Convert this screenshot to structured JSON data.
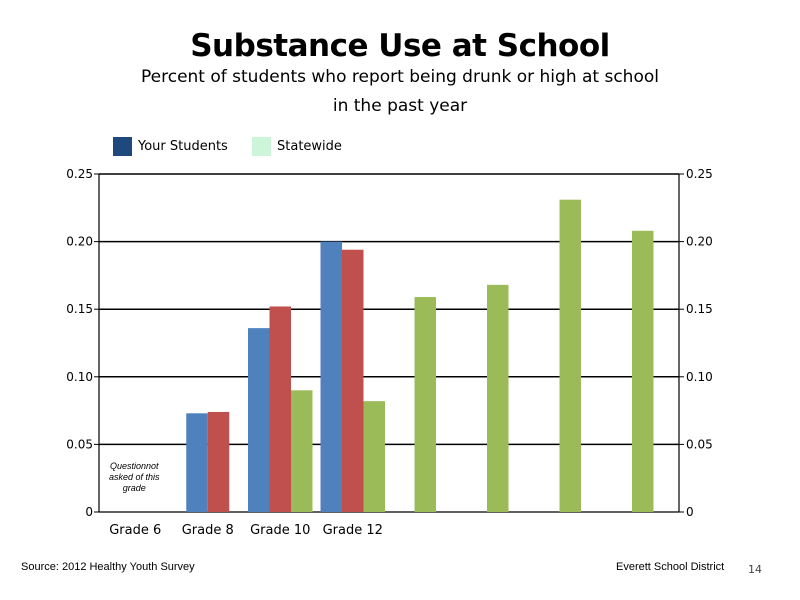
{
  "title": "Substance Use at School",
  "subtitle_line1": "Percent of students who report being drunk or high at school",
  "subtitle_line2": "in the past year",
  "legend": [
    {
      "label": "Your Students",
      "color": "#1f497d"
    },
    {
      "label": "Statewide",
      "color": "#ccf5d9"
    }
  ],
  "footer": {
    "source": "Source: 2012 Healthy Youth Survey",
    "district": "Everett School District",
    "page_number": "14"
  },
  "chart_data": {
    "type": "bar",
    "categories": [
      "Grade 6",
      "Grade 8",
      "Grade 10",
      "Grade 12"
    ],
    "y_ticks": [
      "0",
      "0.05",
      "0.10",
      "0.15",
      "0.20",
      "0.25"
    ],
    "ylim": [
      0,
      0.25
    ],
    "grid": true,
    "colors": {
      "blue": "#4f81bd",
      "red": "#c0504d",
      "green": "#9bbb59"
    },
    "groups": [
      {
        "category": "Grade 6",
        "values": [],
        "note": [
          "Questionnot",
          "asked of this",
          "grade"
        ]
      },
      {
        "category": "Grade 8",
        "values": [
          {
            "color": "blue",
            "value": 0.073
          },
          {
            "color": "red",
            "value": 0.074
          }
        ]
      },
      {
        "category": "Grade 10",
        "values": [
          {
            "color": "blue",
            "value": 0.136
          },
          {
            "color": "red",
            "value": 0.152
          },
          {
            "color": "green",
            "value": 0.09
          }
        ]
      },
      {
        "category": "Grade 12",
        "values": [
          {
            "color": "blue",
            "value": 0.2
          },
          {
            "color": "red",
            "value": 0.194
          },
          {
            "color": "green",
            "value": 0.082
          }
        ]
      },
      {
        "category": "",
        "values": [
          {
            "color": "green",
            "value": 0.159
          }
        ]
      },
      {
        "category": "",
        "values": [
          {
            "color": "green",
            "value": 0.168
          }
        ]
      },
      {
        "category": "",
        "values": [
          {
            "color": "green",
            "value": 0.231
          }
        ]
      },
      {
        "category": "",
        "values": [
          {
            "color": "green",
            "value": 0.208
          }
        ]
      }
    ]
  }
}
